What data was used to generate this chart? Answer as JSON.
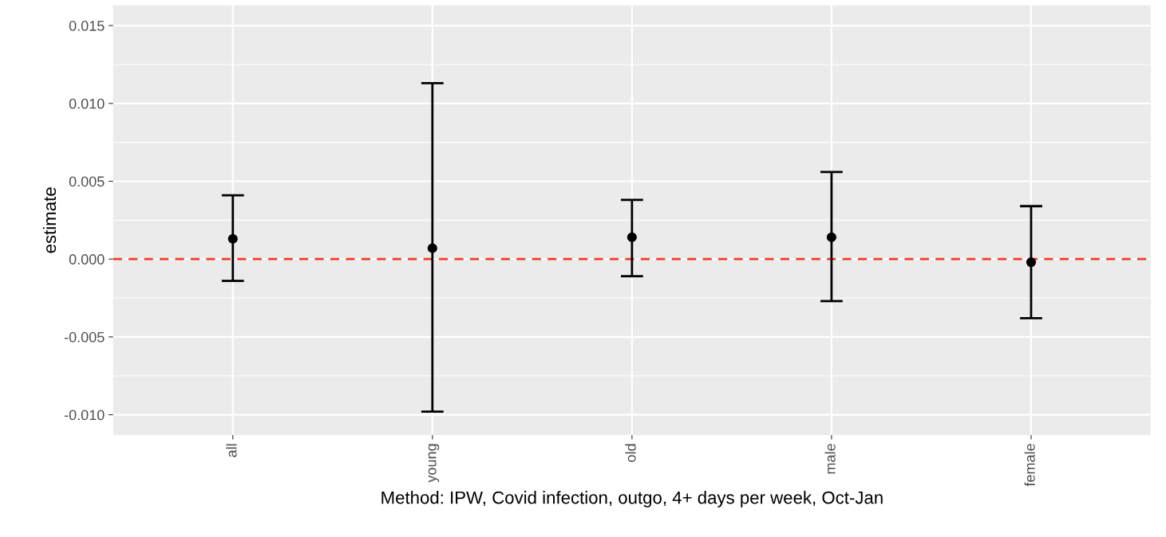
{
  "chart_data": {
    "type": "scatter",
    "xlabel": "Method: IPW, Covid infection, outgo, 4+ days per week, Oct-Jan",
    "ylabel": "estimate",
    "categories": [
      "all",
      "young",
      "old",
      "male",
      "female"
    ],
    "values": [
      0.0013,
      0.0007,
      0.0014,
      0.0014,
      -0.0002
    ],
    "errors": [
      [
        -0.0014,
        0.0041
      ],
      [
        -0.0098,
        0.0113
      ],
      [
        -0.0011,
        0.0038
      ],
      [
        -0.0027,
        0.0056
      ],
      [
        -0.0038,
        0.0034
      ]
    ],
    "color": "#000000",
    "marker": "circle",
    "ylim": [
      -0.0113,
      0.0163
    ],
    "yticks": [
      {
        "value": -0.01,
        "label": "-0.010"
      },
      {
        "value": -0.005,
        "label": "-0.005"
      },
      {
        "value": 0,
        "label": "0.000"
      },
      {
        "value": 0.005,
        "label": "0.005"
      },
      {
        "value": 0.01,
        "label": "0.010"
      },
      {
        "value": 0.015,
        "label": "0.015"
      }
    ],
    "ref_lines": [
      {
        "axis": "y",
        "value": 0,
        "color": "#f8391e",
        "line_style": "dashed"
      }
    ],
    "grid": true
  }
}
